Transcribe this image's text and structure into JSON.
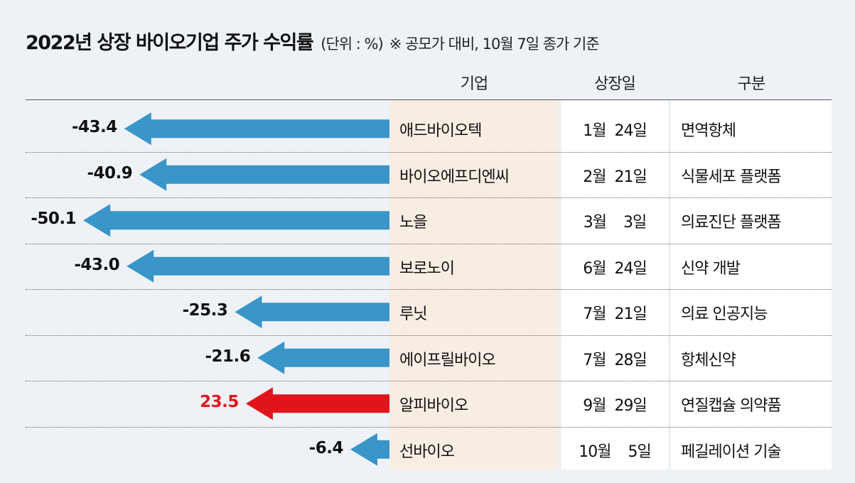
{
  "title": "2022년 상장 바이오기업 주가 수익률",
  "unit": "(단위 : %)",
  "note": "※ 공모가 대비, 10월 7일 종가 기준",
  "headers": {
    "company": "기업",
    "listing_date": "상장일",
    "category": "구분"
  },
  "colors": {
    "negative": "#3a95c9",
    "positive": "#e0151b"
  },
  "chart_data": {
    "type": "bar",
    "orientation": "horizontal",
    "title": "2022년 상장 바이오기업 주가 수익률",
    "unit": "%",
    "categories": [
      "애드바이오텍",
      "바이오에프디엔씨",
      "노을",
      "보로노이",
      "루닛",
      "에이프릴바이오",
      "알피바이오",
      "선바이오"
    ],
    "value_labels": [
      "-43.4",
      "-40.9",
      "-50.1",
      "-43.0",
      "-25.3",
      "-21.6",
      "23.5",
      "-6.4"
    ],
    "values": [
      -43.4,
      -40.9,
      -50.1,
      -43.0,
      -25.3,
      -21.6,
      23.5,
      -6.4
    ],
    "rows": [
      {
        "company": "애드바이오텍",
        "date": "1월  24일",
        "category": "면역항체",
        "value": -43.4
      },
      {
        "company": "바이오에프디엔씨",
        "date": "2월  21일",
        "category": "식물세포 플랫폼",
        "value": -40.9
      },
      {
        "company": "노을",
        "date": "3월    3일",
        "category": "의료진단 플랫폼",
        "value": -50.1
      },
      {
        "company": "보로노이",
        "date": "6월  24일",
        "category": "신약 개발",
        "value": -43.0
      },
      {
        "company": "루닛",
        "date": "7월  21일",
        "category": "의료 인공지능",
        "value": -25.3
      },
      {
        "company": "에이프릴바이오",
        "date": "7월  28일",
        "category": "항체신약",
        "value": -21.6
      },
      {
        "company": "알피바이오",
        "date": "9월  29일",
        "category": "연질캡슐 의약품",
        "value": 23.5
      },
      {
        "company": "선바이오",
        "date": "10월    5일",
        "category": "페길레이션 기술",
        "value": -6.4
      }
    ]
  }
}
